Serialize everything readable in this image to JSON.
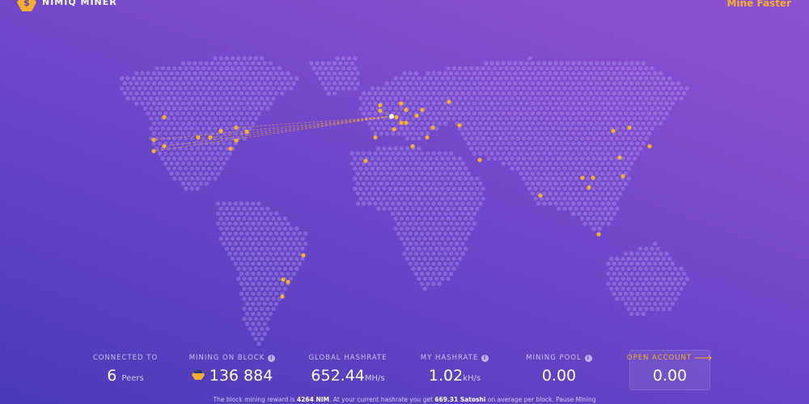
{
  "header": {
    "title": "NIMIQ MINER",
    "action": "Mine Faster"
  },
  "stats": [
    {
      "label": "CONNECTED TO",
      "value": "6",
      "unit": "Peers"
    },
    {
      "label": "MINING ON BLOCK",
      "value": "136 884"
    },
    {
      "label": "GLOBAL HASHRATE",
      "value": "652.44",
      "unit": "MH/s"
    },
    {
      "label": "MY HASHRATE",
      "value": "1.02",
      "unit": "kH/s"
    },
    {
      "label": "MINING POOL",
      "value": "0.00"
    },
    {
      "label": "OPEN ACCOUNT",
      "value": "0.00"
    }
  ],
  "footer": {
    "before": "The block mining reward is",
    "reward": "4264 NIM",
    "mid": ". At your current hashrate you get",
    "earn": "669.31 Satoshi",
    "after": "on average per block.",
    "link": "Pause Mining"
  }
}
